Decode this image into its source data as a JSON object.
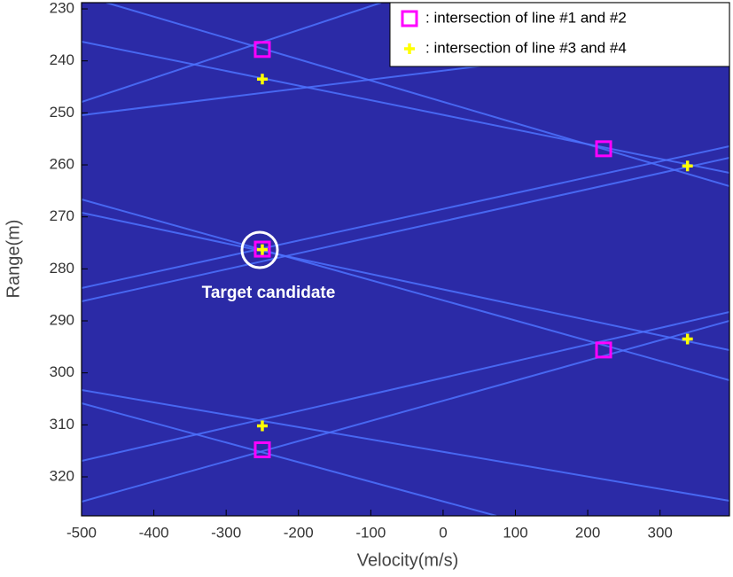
{
  "chart_data": {
    "type": "scatter",
    "x_label": "Velocity(m/s)",
    "y_label": "Range(m)",
    "annotation": "Target candidate",
    "xlim": [
      -500,
      396
    ],
    "ylim": [
      228.8,
      327.5
    ],
    "y_inverted": true,
    "xticks": [
      -500,
      -400,
      -300,
      -200,
      -100,
      0,
      100,
      200,
      300
    ],
    "yticks": [
      230,
      240,
      250,
      260,
      270,
      280,
      290,
      300,
      310,
      320
    ],
    "legend": "upper right",
    "series": [
      {
        "name": ": intersection of line #1 and #2",
        "color": "#ff00ff",
        "marker": "square",
        "x": [
          -250,
          222,
          222,
          -250,
          -250
        ],
        "values": [
          237.8,
          256.9,
          295.6,
          314.8,
          276.2
        ]
      },
      {
        "name": ": intersection of line #3 and #4",
        "color": "#ffff00",
        "marker": "plus",
        "x": [
          -250,
          338,
          338,
          -250,
          -250
        ],
        "values": [
          243.5,
          260.2,
          293.5,
          310.2,
          276.3
        ]
      }
    ]
  }
}
